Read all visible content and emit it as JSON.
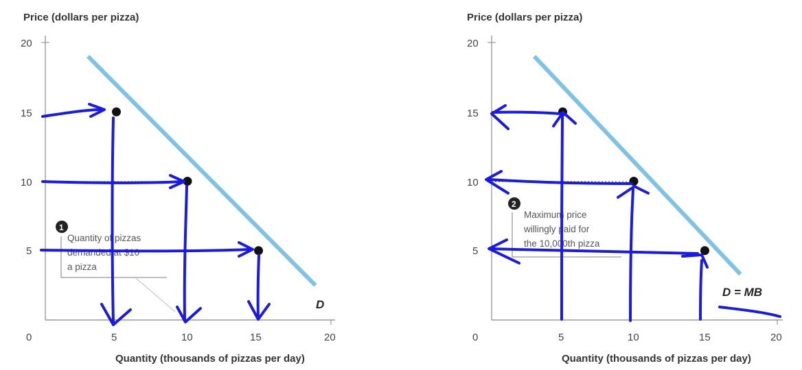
{
  "chart_data": [
    {
      "type": "line",
      "ylabel": "Price (dollars per pizza)",
      "xlabel": "Quantity (thousands of pizzas per day)",
      "xlim": [
        0,
        20
      ],
      "ylim": [
        0,
        20
      ],
      "x_ticks": [
        "0",
        "5",
        "10",
        "15",
        "20"
      ],
      "y_ticks": [
        "5",
        "10",
        "15",
        "20"
      ],
      "curve_label": "D",
      "curve_color": "#7ec3e6",
      "curve": [
        {
          "x": 3,
          "y": 19
        },
        {
          "x": 19,
          "y": 2.5
        }
      ],
      "points": [
        {
          "x": 5,
          "y": 15
        },
        {
          "x": 10,
          "y": 10
        },
        {
          "x": 15,
          "y": 5
        }
      ],
      "annotation": {
        "number": "1",
        "lines": [
          "Quantity of pizzas",
          "demanded at $10",
          "a pizza"
        ]
      },
      "arrow_color": "#1a1ae6"
    },
    {
      "type": "line",
      "ylabel": "Price (dollars per pizza)",
      "xlabel": "Quantity (thousands of pizzas per day)",
      "xlim": [
        0,
        20
      ],
      "ylim": [
        0,
        20
      ],
      "x_ticks": [
        "0",
        "5",
        "10",
        "15",
        "20"
      ],
      "y_ticks": [
        "5",
        "10",
        "15",
        "20"
      ],
      "curve_label": "D = MB",
      "curve_color": "#7ec3e6",
      "curve": [
        {
          "x": 3,
          "y": 19
        },
        {
          "x": 17.5,
          "y": 3.3
        }
      ],
      "points": [
        {
          "x": 5,
          "y": 15
        },
        {
          "x": 10,
          "y": 10
        },
        {
          "x": 15,
          "y": 5
        }
      ],
      "annotation": {
        "number": "2",
        "lines": [
          "Maximum price",
          "willingly paid for",
          "the 10,000th pizza"
        ]
      },
      "arrow_color": "#1a1ae6"
    }
  ]
}
